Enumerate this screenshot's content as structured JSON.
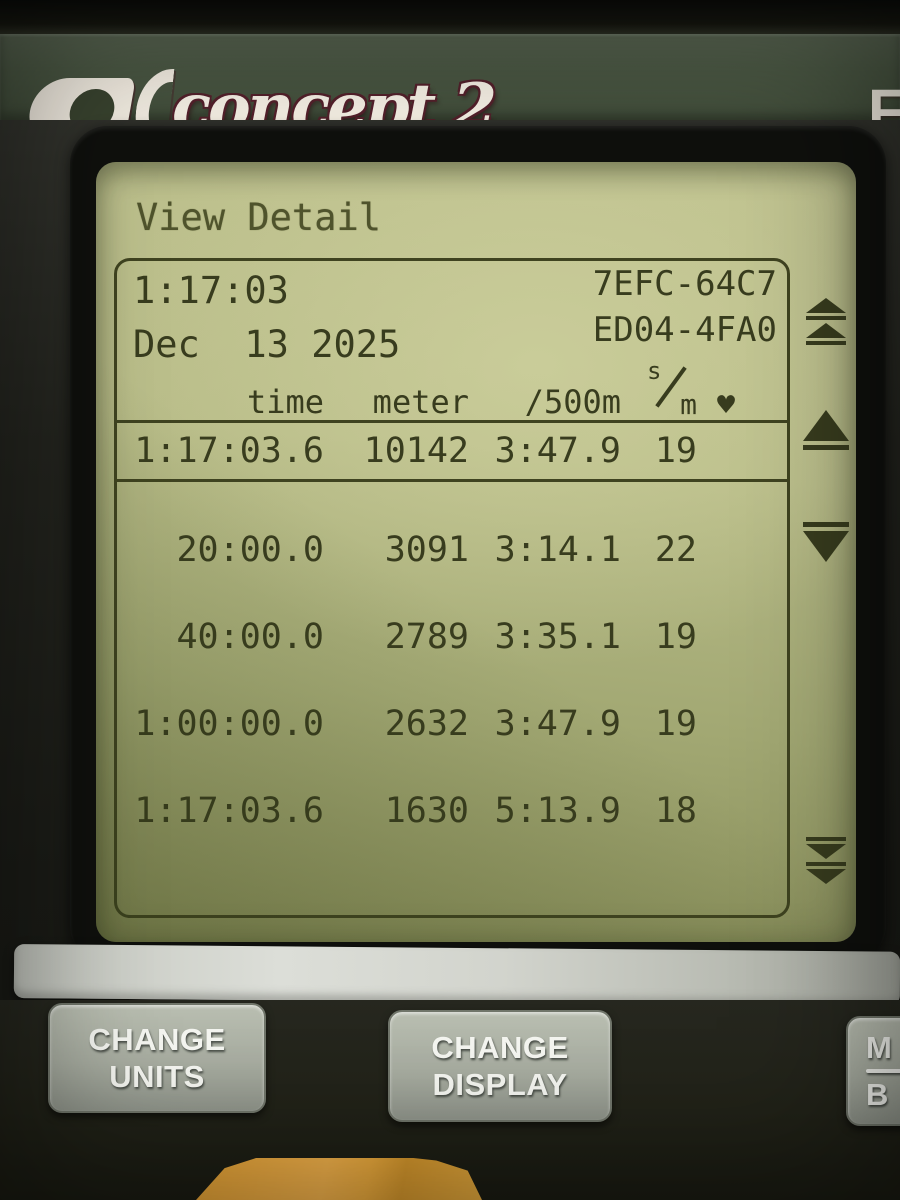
{
  "brand": {
    "logo_text": "concept 2",
    "registered": "®",
    "partial_right_letter": "F"
  },
  "screen": {
    "title": "View Detail",
    "session": {
      "duration": "1:17:03",
      "date": "Dec  13 2025",
      "code_line1": "7EFC-64C7",
      "code_line2": "ED04-4FA0"
    },
    "table": {
      "headers": {
        "time": "time",
        "meter": "meter",
        "pace": "/500m",
        "spm_numerator": "s",
        "spm_denominator": "m",
        "heart": "♥"
      },
      "summary": {
        "time": "1:17:03.6",
        "meter": "10142",
        "pace": "3:47.9",
        "spm": "19"
      },
      "splits": [
        {
          "time": "20:00.0",
          "meter": "3091",
          "pace": "3:14.1",
          "spm": "22"
        },
        {
          "time": "40:00.0",
          "meter": "2789",
          "pace": "3:35.1",
          "spm": "19"
        },
        {
          "time": "1:00:00.0",
          "meter": "2632",
          "pace": "3:47.9",
          "spm": "19"
        },
        {
          "time": "1:17:03.6",
          "meter": "1630",
          "pace": "5:13.9",
          "spm": "18"
        }
      ]
    },
    "scroll_indicators": [
      "double-up",
      "up",
      "down",
      "double-down"
    ]
  },
  "buttons": {
    "change_units": [
      "CHANGE",
      "UNITS"
    ],
    "change_display": [
      "CHANGE",
      "DISPLAY"
    ],
    "menu_back_partial": [
      "M",
      "B"
    ]
  },
  "colors": {
    "lcd_bg": "#b5ba85",
    "lcd_text": "#383c1e",
    "band": "#4b5844",
    "logo_outline": "#53202b",
    "button_face": "#a7aca0",
    "yellow": "#e8a83c",
    "silver": "#cbcec6"
  }
}
